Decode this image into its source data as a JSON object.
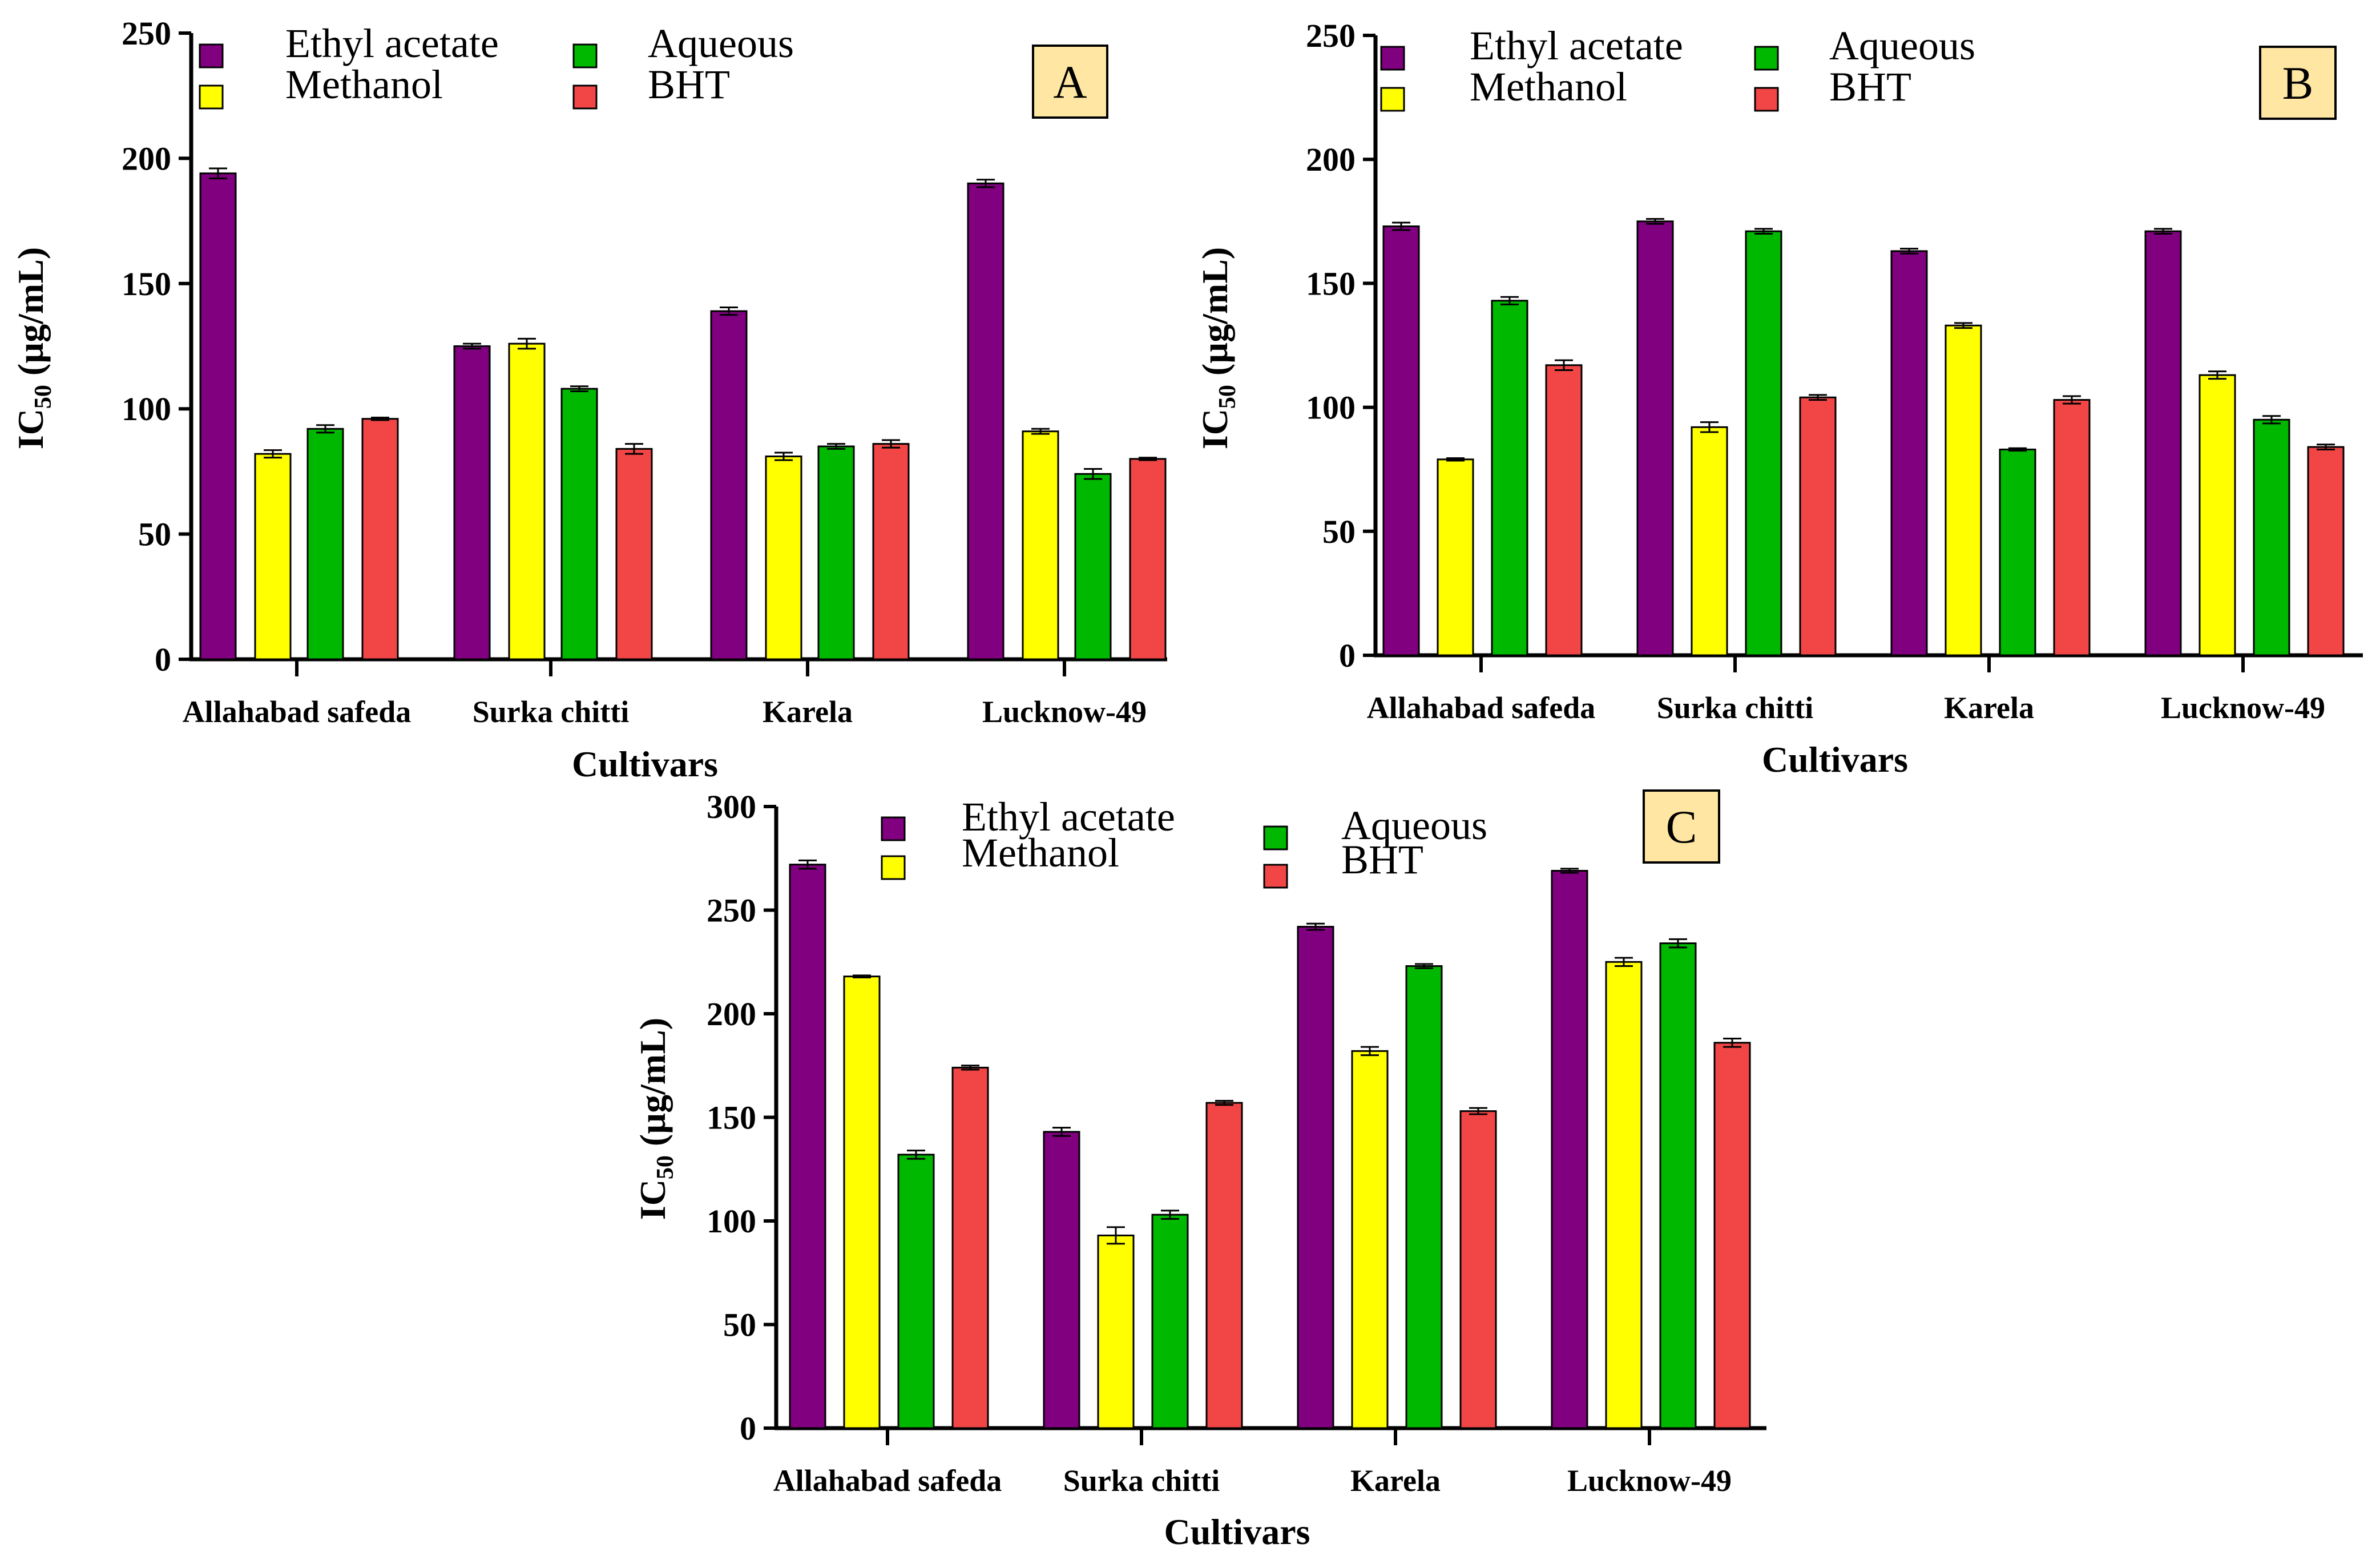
{
  "colors": {
    "Ethyl acetate": "#800080",
    "Methanol": "#ffff00",
    "Aqueous": "#00b800",
    "BHT": "#f24646",
    "label_box": "#ffe6a3"
  },
  "chart_data": [
    {
      "type": "bar",
      "panel": "A",
      "categories": [
        "Allahabad safeda",
        "Surka chitti",
        "Karela",
        "Lucknow-49"
      ],
      "series": [
        {
          "name": "Ethyl acetate",
          "values": [
            194,
            125,
            139,
            190
          ],
          "errors": [
            2,
            1,
            1.5,
            1.5
          ]
        },
        {
          "name": "Methanol",
          "values": [
            82,
            126,
            81,
            91
          ],
          "errors": [
            1.5,
            2,
            1.5,
            1
          ]
        },
        {
          "name": "Aqueous",
          "values": [
            92,
            108,
            85,
            74
          ],
          "errors": [
            1.5,
            1,
            1,
            2
          ]
        },
        {
          "name": "BHT",
          "values": [
            96,
            84,
            86,
            80
          ],
          "errors": [
            0.5,
            2,
            1.5,
            0.5
          ]
        }
      ],
      "legend_order": [
        "Ethyl acetate",
        "Methanol",
        "Aqueous",
        "BHT"
      ],
      "ylim": [
        0,
        250
      ],
      "yticks": [
        0,
        50,
        100,
        150,
        200,
        250
      ],
      "xlabel": "Cultivars",
      "ylabel": "IC50 (µg/mL)"
    },
    {
      "type": "bar",
      "panel": "B",
      "categories": [
        "Allahabad safeda",
        "Surka chitti",
        "Karela",
        "Lucknow-49"
      ],
      "series": [
        {
          "name": "Ethyl acetate",
          "values": [
            173,
            175,
            163,
            171
          ],
          "errors": [
            1.5,
            1,
            1,
            1
          ]
        },
        {
          "name": "Methanol",
          "values": [
            79,
            92,
            133,
            113
          ],
          "errors": [
            0.5,
            2,
            1,
            1.5
          ]
        },
        {
          "name": "Aqueous",
          "values": [
            143,
            171,
            83,
            95
          ],
          "errors": [
            1.5,
            1,
            0.5,
            1.5
          ]
        },
        {
          "name": "BHT",
          "values": [
            117,
            104,
            103,
            84
          ],
          "errors": [
            2,
            1,
            1.5,
            1
          ]
        }
      ],
      "legend_order": [
        "Ethyl acetate",
        "Methanol",
        "Aqueous",
        "BHT"
      ],
      "ylim": [
        0,
        250
      ],
      "yticks": [
        0,
        50,
        100,
        150,
        200,
        250
      ],
      "xlabel": "Cultivars",
      "ylabel": "IC50 (µg/mL)"
    },
    {
      "type": "bar",
      "panel": "C",
      "categories": [
        "Allahabad safeda",
        "Surka chitti",
        "Karela",
        "Lucknow-49"
      ],
      "series": [
        {
          "name": "Ethyl acetate",
          "values": [
            272,
            143,
            242,
            269
          ],
          "errors": [
            2,
            2,
            1.5,
            1
          ]
        },
        {
          "name": "Methanol",
          "values": [
            218,
            93,
            182,
            225
          ],
          "errors": [
            0.5,
            4,
            2,
            2
          ]
        },
        {
          "name": "Aqueous",
          "values": [
            132,
            103,
            223,
            234
          ],
          "errors": [
            2,
            2,
            1,
            2
          ]
        },
        {
          "name": "BHT",
          "values": [
            174,
            157,
            153,
            186
          ],
          "errors": [
            1,
            1,
            1.5,
            2
          ]
        }
      ],
      "legend_order": [
        "Ethyl acetate",
        "Methanol",
        "Aqueous",
        "BHT"
      ],
      "ylim": [
        0,
        300
      ],
      "yticks": [
        0,
        50,
        100,
        150,
        200,
        250,
        300
      ],
      "xlabel": "Cultivars",
      "ylabel": "IC50 (µg/mL)"
    }
  ]
}
